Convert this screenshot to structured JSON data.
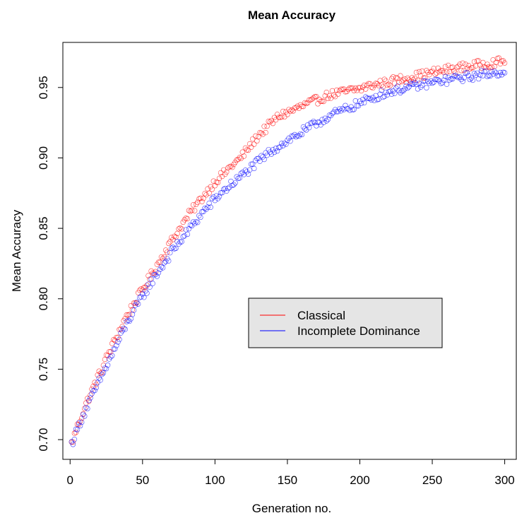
{
  "chart_data": {
    "type": "scatter",
    "title": "Mean Accuracy",
    "xlabel": "Generation no.",
    "ylabel": "Mean Accuracy",
    "xlim": [
      -5,
      308
    ],
    "ylim": [
      0.686,
      0.982
    ],
    "x_ticks": [
      0,
      50,
      100,
      150,
      200,
      250,
      300
    ],
    "y_ticks": [
      0.7,
      0.75,
      0.8,
      0.85,
      0.9,
      0.95
    ],
    "x_tick_labels": [
      "0",
      "50",
      "100",
      "150",
      "200",
      "250",
      "300"
    ],
    "y_tick_labels": [
      "0.70",
      "0.75",
      "0.80",
      "0.85",
      "0.90",
      "0.95"
    ],
    "marker": "open-circle",
    "legend_position": "center-right",
    "legend_background": "#e5e5e5",
    "x_range": [
      1,
      300
    ],
    "series": [
      {
        "name": "Classical",
        "color": "#ff0000",
        "values": [
          0.697,
          0.704,
          0.711,
          0.717,
          0.723,
          0.729,
          0.734,
          0.74,
          0.745,
          0.75,
          0.756,
          0.761,
          0.766,
          0.771,
          0.776,
          0.781,
          0.786,
          0.79,
          0.794,
          0.798,
          0.802,
          0.806,
          0.81,
          0.814,
          0.818,
          0.822,
          0.826,
          0.83,
          0.834,
          0.838,
          0.842,
          0.846,
          0.849,
          0.853,
          0.856,
          0.86,
          0.863,
          0.866,
          0.869,
          0.872,
          0.875,
          0.878,
          0.881,
          0.884,
          0.886,
          0.888,
          0.89,
          0.893,
          0.895,
          0.897,
          0.899,
          0.902,
          0.905,
          0.908,
          0.911,
          0.914,
          0.917,
          0.919,
          0.921,
          0.924,
          0.926,
          0.928,
          0.93,
          0.931,
          0.932,
          0.933,
          0.934,
          0.935,
          0.936,
          0.937,
          0.938,
          0.939,
          0.94,
          0.941,
          0.942,
          0.943,
          0.944,
          0.945,
          0.945,
          0.946,
          0.946,
          0.947,
          0.947,
          0.948,
          0.948,
          0.949,
          0.949,
          0.95,
          0.951,
          0.951,
          0.952,
          0.952,
          0.953,
          0.953,
          0.954,
          0.954,
          0.955,
          0.955,
          0.956,
          0.956,
          0.957,
          0.957,
          0.958,
          0.958,
          0.959,
          0.959,
          0.96,
          0.96,
          0.961,
          0.961,
          0.962,
          0.962,
          0.963,
          0.963,
          0.963,
          0.964,
          0.964,
          0.965,
          0.965,
          0.965,
          0.966,
          0.966,
          0.966,
          0.967,
          0.967,
          0.967,
          0.968,
          0.968,
          0.968,
          0.969
        ]
      },
      {
        "name": "Incomplete Dominance",
        "color": "#0000ff",
        "values": [
          0.697,
          0.703,
          0.709,
          0.715,
          0.72,
          0.725,
          0.73,
          0.735,
          0.74,
          0.745,
          0.75,
          0.755,
          0.76,
          0.765,
          0.77,
          0.775,
          0.78,
          0.785,
          0.789,
          0.793,
          0.797,
          0.801,
          0.805,
          0.809,
          0.813,
          0.816,
          0.82,
          0.823,
          0.827,
          0.83,
          0.834,
          0.837,
          0.84,
          0.843,
          0.846,
          0.849,
          0.852,
          0.855,
          0.858,
          0.861,
          0.864,
          0.866,
          0.869,
          0.871,
          0.874,
          0.876,
          0.878,
          0.88,
          0.882,
          0.884,
          0.886,
          0.888,
          0.89,
          0.892,
          0.894,
          0.896,
          0.898,
          0.9,
          0.902,
          0.904,
          0.906,
          0.907,
          0.909,
          0.91,
          0.912,
          0.913,
          0.915,
          0.916,
          0.917,
          0.919,
          0.92,
          0.922,
          0.923,
          0.925,
          0.926,
          0.927,
          0.929,
          0.93,
          0.931,
          0.932,
          0.933,
          0.934,
          0.935,
          0.936,
          0.937,
          0.938,
          0.939,
          0.94,
          0.941,
          0.942,
          0.943,
          0.944,
          0.945,
          0.946,
          0.946,
          0.947,
          0.948,
          0.948,
          0.949,
          0.949,
          0.95,
          0.95,
          0.951,
          0.951,
          0.952,
          0.952,
          0.953,
          0.953,
          0.954,
          0.954,
          0.955,
          0.955,
          0.955,
          0.956,
          0.956,
          0.957,
          0.957,
          0.957,
          0.958,
          0.958,
          0.958,
          0.959,
          0.959,
          0.959,
          0.96,
          0.96,
          0.96,
          0.961,
          0.961,
          0.962
        ]
      }
    ]
  }
}
